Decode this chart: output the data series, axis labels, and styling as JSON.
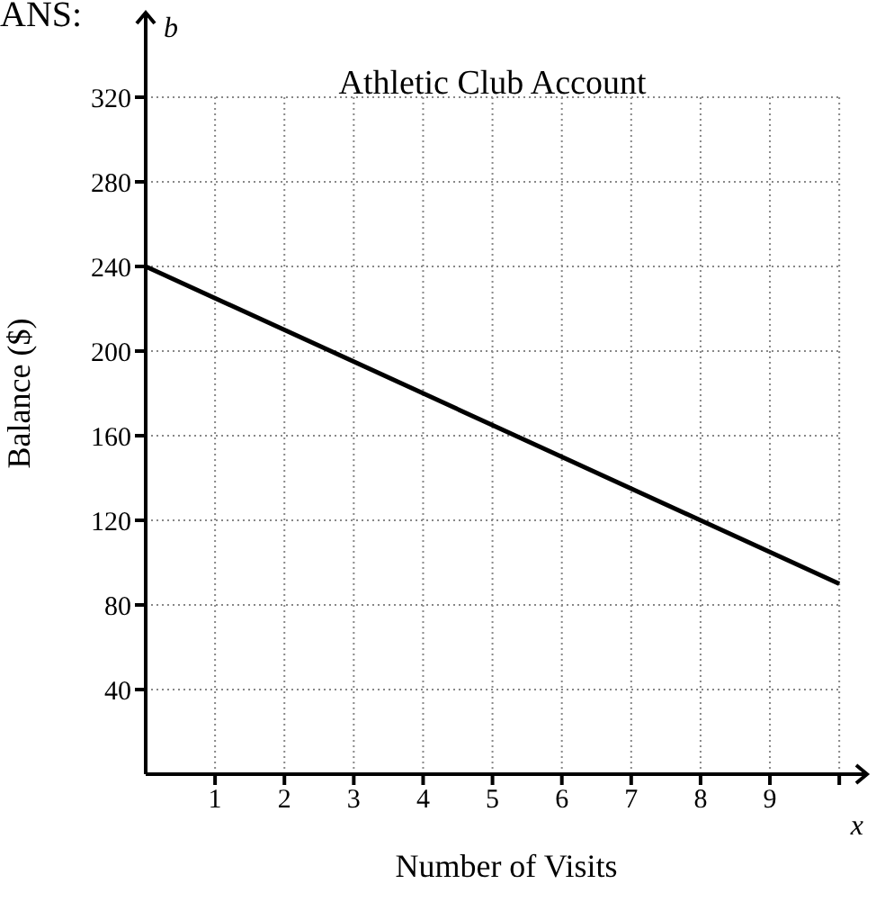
{
  "chart_data": {
    "type": "line",
    "title": "Athletic Club Account",
    "xlabel": "Number of Visits",
    "ylabel": "Balance ($)",
    "annotations": [
      "ANS:",
      "b",
      "x"
    ],
    "x": [
      0,
      10
    ],
    "series": [
      {
        "color": "#000000",
        "values": [
          240,
          90
        ]
      }
    ],
    "xlim": [
      0,
      10.4
    ],
    "xticks": [
      1,
      2,
      3,
      4,
      5,
      6,
      7,
      8,
      9,
      {
        "value": 10,
        "label": null
      }
    ],
    "ylim": [
      0,
      360
    ],
    "yticks": [
      40,
      80,
      120,
      160,
      200,
      240,
      280,
      320
    ],
    "grid": true,
    "marker": "none",
    "line_style": "solid"
  }
}
